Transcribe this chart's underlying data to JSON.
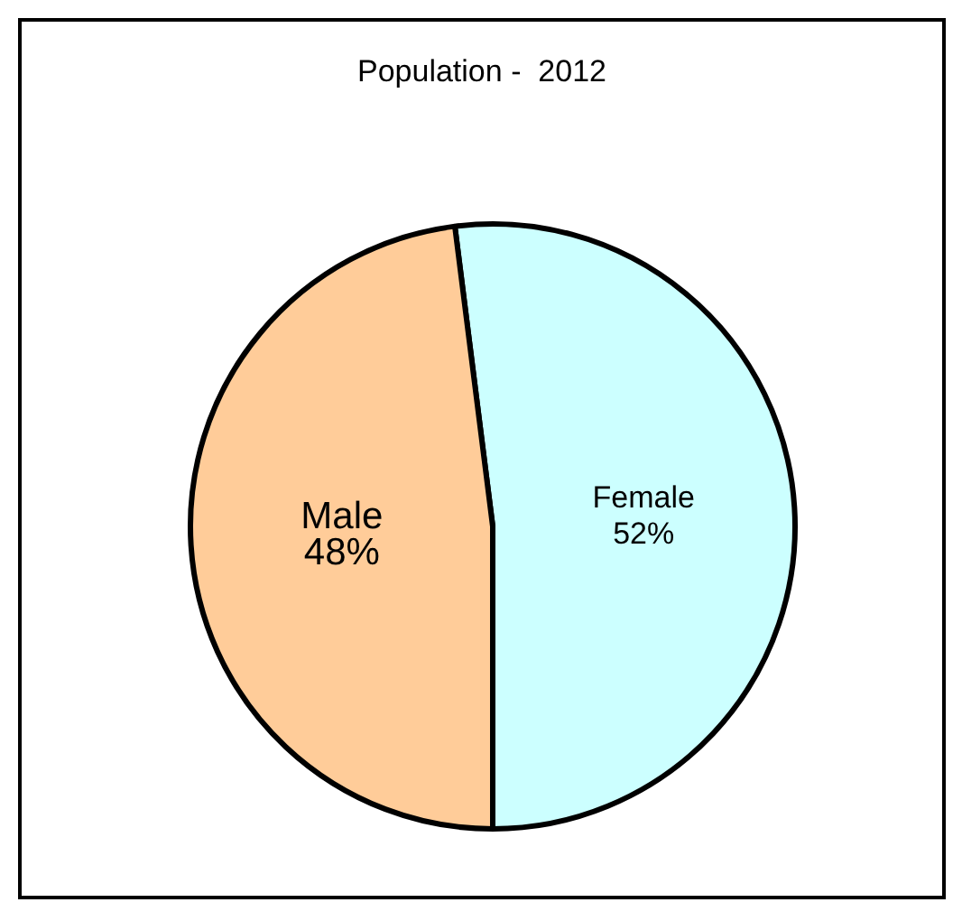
{
  "chart_data": {
    "type": "pie",
    "title": "Population -  2012",
    "categories": [
      "Female",
      "Male"
    ],
    "values": [
      52,
      48
    ],
    "colors": [
      "#ccffff",
      "#ffcc99"
    ],
    "value_labels": [
      "52%",
      "48%"
    ],
    "legend": false
  }
}
